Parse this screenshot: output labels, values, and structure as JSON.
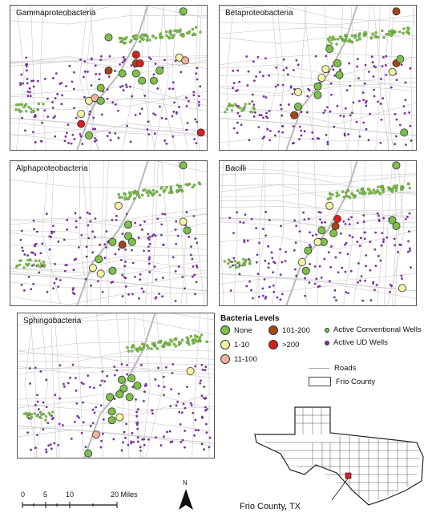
{
  "panels": [
    {
      "title": "Gammaproteobacteria",
      "sites": [
        [
          0.88,
          0.04,
          "none"
        ],
        [
          0.5,
          0.22,
          "none"
        ],
        [
          0.57,
          0.47,
          "none"
        ],
        [
          0.64,
          0.47,
          "none"
        ],
        [
          0.67,
          0.52,
          "none"
        ],
        [
          0.73,
          0.52,
          "none"
        ],
        [
          0.76,
          0.45,
          "none"
        ],
        [
          0.46,
          0.57,
          "none"
        ],
        [
          0.4,
          0.66,
          "low"
        ],
        [
          0.43,
          0.64,
          "mid1"
        ],
        [
          0.46,
          0.66,
          "none"
        ],
        [
          0.4,
          0.9,
          "none"
        ],
        [
          0.86,
          0.36,
          "low"
        ],
        [
          0.89,
          0.38,
          "mid1"
        ],
        [
          0.64,
          0.34,
          "high"
        ],
        [
          0.64,
          0.4,
          "mid2"
        ],
        [
          0.66,
          0.4,
          "high"
        ],
        [
          0.5,
          0.45,
          "mid2"
        ],
        [
          0.36,
          0.75,
          "low"
        ],
        [
          0.36,
          0.82,
          "high"
        ],
        [
          0.97,
          0.88,
          "high"
        ]
      ]
    },
    {
      "title": "Betaproteobacteria",
      "sites": [
        [
          0.9,
          0.04,
          "mid2"
        ],
        [
          0.56,
          0.3,
          "none"
        ],
        [
          0.6,
          0.4,
          "none"
        ],
        [
          0.61,
          0.48,
          "none"
        ],
        [
          0.52,
          0.5,
          "low"
        ],
        [
          0.54,
          0.44,
          "low"
        ],
        [
          0.5,
          0.56,
          "none"
        ],
        [
          0.4,
          0.6,
          "low"
        ],
        [
          0.4,
          0.7,
          "none"
        ],
        [
          0.38,
          0.76,
          "mid2"
        ],
        [
          0.9,
          0.4,
          "mid2"
        ],
        [
          0.92,
          0.37,
          "none"
        ],
        [
          0.88,
          0.46,
          "low"
        ],
        [
          0.94,
          0.88,
          "none"
        ],
        [
          0.5,
          0.62,
          "none"
        ]
      ]
    },
    {
      "title": "Alphaproteobacteria",
      "sites": [
        [
          0.88,
          0.03,
          "none"
        ],
        [
          0.55,
          0.31,
          "low"
        ],
        [
          0.6,
          0.52,
          "none"
        ],
        [
          0.62,
          0.56,
          "none"
        ],
        [
          0.52,
          0.56,
          "none"
        ],
        [
          0.57,
          0.58,
          "mid2"
        ],
        [
          0.45,
          0.68,
          "none"
        ],
        [
          0.42,
          0.74,
          "low"
        ],
        [
          0.46,
          0.78,
          "low"
        ],
        [
          0.52,
          0.76,
          "none"
        ],
        [
          0.88,
          0.42,
          "low"
        ],
        [
          0.9,
          0.48,
          "none"
        ],
        [
          0.6,
          0.44,
          "none"
        ]
      ]
    },
    {
      "title": "Bacilli",
      "sites": [
        [
          0.9,
          0.03,
          "none"
        ],
        [
          0.56,
          0.31,
          "low"
        ],
        [
          0.6,
          0.4,
          "high"
        ],
        [
          0.59,
          0.45,
          "mid2"
        ],
        [
          0.58,
          0.5,
          "none"
        ],
        [
          0.53,
          0.56,
          "none"
        ],
        [
          0.5,
          0.56,
          "low"
        ],
        [
          0.45,
          0.62,
          "none"
        ],
        [
          0.42,
          0.7,
          "low"
        ],
        [
          0.44,
          0.76,
          "none"
        ],
        [
          0.88,
          0.41,
          "none"
        ],
        [
          0.9,
          0.45,
          "none"
        ],
        [
          0.93,
          0.88,
          "low"
        ],
        [
          0.52,
          0.48,
          "none"
        ]
      ]
    },
    {
      "title": "Sphingobacteria",
      "sites": [
        [
          0.88,
          0.4,
          "low"
        ],
        [
          0.53,
          0.46,
          "none"
        ],
        [
          0.58,
          0.45,
          "none"
        ],
        [
          0.61,
          0.5,
          "none"
        ],
        [
          0.54,
          0.52,
          "none"
        ],
        [
          0.52,
          0.56,
          "none"
        ],
        [
          0.48,
          0.68,
          "none"
        ],
        [
          0.48,
          0.74,
          "none"
        ],
        [
          0.52,
          0.72,
          "low"
        ],
        [
          0.47,
          0.58,
          "none"
        ],
        [
          0.4,
          0.84,
          "mid1"
        ],
        [
          0.36,
          0.97,
          "none"
        ],
        [
          0.57,
          0.58,
          "none"
        ]
      ]
    }
  ],
  "legend": {
    "title": "Bacteria Levels",
    "levels": [
      {
        "key": "none",
        "label": "None",
        "color": "#7dc14b"
      },
      {
        "key": "low",
        "label": "1-10",
        "color": "#f4f3a3"
      },
      {
        "key": "mid1",
        "label": "11-100",
        "color": "#efb39d"
      },
      {
        "key": "mid2",
        "label": "101-200",
        "color": "#a3461a"
      },
      {
        "key": "high",
        "label": ">200",
        "color": "#d81e1e"
      }
    ],
    "conventional": {
      "label": "Active Conventional Wells",
      "color": "#7dc14b"
    },
    "ud": {
      "label": "Active UD Wells",
      "color": "#7a2f9b"
    },
    "roads": {
      "label": "Roads"
    },
    "county": {
      "label": "Frio County"
    }
  },
  "scale": {
    "ticks": [
      "0",
      "5",
      "10",
      "20 Miles"
    ],
    "values": [
      0,
      5,
      10,
      20
    ]
  },
  "north": "N",
  "inset": {
    "label": "Frio County, TX",
    "highlight": "#d81e1e"
  }
}
